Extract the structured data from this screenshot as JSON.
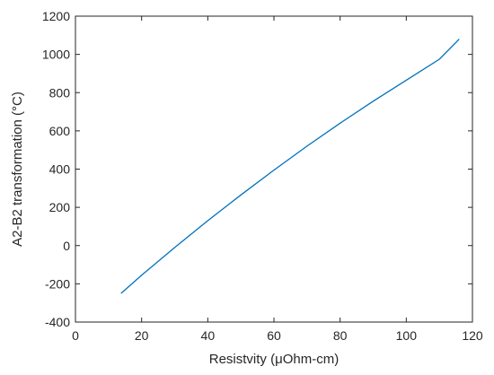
{
  "chart_data": {
    "type": "line",
    "title": "",
    "xlabel": "Resistvity  (μOhm-cm)",
    "ylabel": "A2-B2 transformation (°C)",
    "xlim": [
      0,
      120
    ],
    "ylim": [
      -400,
      1200
    ],
    "xticks": [
      0,
      20,
      40,
      60,
      80,
      100,
      120
    ],
    "yticks": [
      -400,
      -200,
      0,
      200,
      400,
      600,
      800,
      1000,
      1200
    ],
    "grid": false,
    "line_color": "#0072BD",
    "series": [
      {
        "x": [
          13.8,
          20,
          30,
          40,
          50,
          60,
          70,
          80,
          90,
          100,
          110,
          116
        ],
        "y": [
          -250,
          -155,
          -10,
          130,
          265,
          395,
          520,
          640,
          755,
          865,
          975,
          1080
        ]
      }
    ]
  }
}
